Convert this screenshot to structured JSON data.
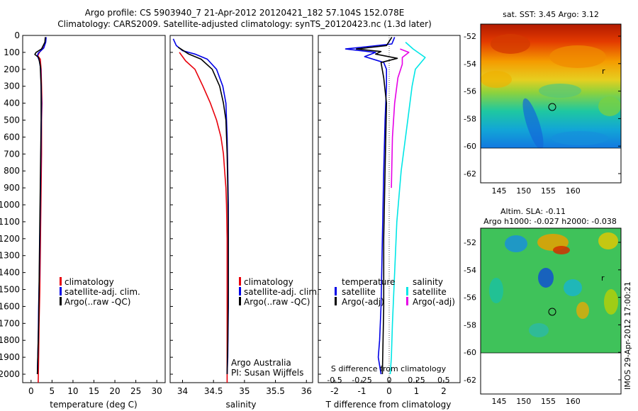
{
  "header": {
    "line1": "Argo profile: CS 5903940_7 21-Apr-2012 20120421_182 57.104S 152.078E",
    "line2": "Climatology: CARS2009. Satellite-adjusted climatology: synTS_20120423.nc (1.3d later)"
  },
  "watermark": "IMOS 29-Apr-2012 17:00:21",
  "colors": {
    "red": "#e8000b",
    "blue": "#0000e6",
    "black": "#000000",
    "cyan": "#00e6e6",
    "magenta": "#e600e6"
  },
  "chart_data": [
    {
      "type": "line",
      "xlabel": "temperature (deg C)",
      "x_ticks": [
        "0",
        "5",
        "10",
        "15",
        "20",
        "25",
        "30"
      ],
      "xlim": [
        -2,
        32
      ],
      "y_ticks": [
        "0",
        "100",
        "200",
        "300",
        "400",
        "500",
        "600",
        "700",
        "800",
        "900",
        "1000",
        "1100",
        "1200",
        "1300",
        "1400",
        "1500",
        "1600",
        "1700",
        "1800",
        "1900",
        "2000"
      ],
      "ylim": [
        2050,
        0
      ],
      "legend": [
        "climatology",
        "satellite-adj. clim.",
        "Argo(..raw -QC)"
      ],
      "series": [
        {
          "name": "climatology",
          "color": "red",
          "points": [
            [
              3.5,
              10
            ],
            [
              3.4,
              40
            ],
            [
              3.1,
              70
            ],
            [
              2.0,
              100
            ],
            [
              1.6,
              120
            ],
            [
              2.2,
              140
            ],
            [
              2.4,
              200
            ],
            [
              2.5,
              300
            ],
            [
              2.6,
              400
            ],
            [
              2.5,
              500
            ],
            [
              2.5,
              700
            ],
            [
              2.4,
              900
            ],
            [
              2.3,
              1100
            ],
            [
              2.2,
              1300
            ],
            [
              2.1,
              1500
            ],
            [
              1.9,
              1700
            ],
            [
              1.8,
              1900
            ],
            [
              1.7,
              2050
            ]
          ]
        },
        {
          "name": "satellite-adj. clim.",
          "color": "blue",
          "points": [
            [
              3.6,
              10
            ],
            [
              3.5,
              40
            ],
            [
              3.0,
              75
            ],
            [
              1.7,
              105
            ],
            [
              1.5,
              120
            ],
            [
              2.0,
              150
            ],
            [
              2.3,
              200
            ],
            [
              2.4,
              300
            ],
            [
              2.5,
              400
            ],
            [
              2.4,
              600
            ],
            [
              2.3,
              800
            ],
            [
              2.2,
              1000
            ],
            [
              2.1,
              1200
            ],
            [
              2.0,
              1400
            ],
            [
              1.8,
              1600
            ],
            [
              1.7,
              1800
            ],
            [
              1.5,
              2000
            ]
          ]
        },
        {
          "name": "Argo(..raw -QC)",
          "color": "black",
          "points": [
            [
              3.4,
              10
            ],
            [
              3.3,
              40
            ],
            [
              2.5,
              80
            ],
            [
              1.2,
              100
            ],
            [
              0.9,
              112
            ],
            [
              1.8,
              130
            ],
            [
              2.2,
              180
            ],
            [
              2.4,
              300
            ],
            [
              2.4,
              500
            ],
            [
              2.3,
              700
            ],
            [
              2.2,
              900
            ],
            [
              2.1,
              1100
            ],
            [
              2.0,
              1300
            ],
            [
              1.9,
              1500
            ],
            [
              1.8,
              1700
            ],
            [
              1.6,
              1900
            ],
            [
              1.5,
              2000
            ]
          ]
        }
      ]
    },
    {
      "type": "line",
      "xlabel": "salinity",
      "x_ticks": [
        "34",
        "34.5",
        "35",
        "35.5",
        "36"
      ],
      "xlim": [
        33.8,
        36.1
      ],
      "ylim": [
        2050,
        0
      ],
      "legend": [
        "climatology",
        "satellite-adj. clim.",
        "Argo(..raw -QC)"
      ],
      "annotation": [
        "Argo Australia",
        "PI: Susan Wijffels"
      ],
      "series": [
        {
          "name": "climatology",
          "color": "red",
          "points": [
            [
              33.95,
              100
            ],
            [
              34.05,
              150
            ],
            [
              34.2,
              200
            ],
            [
              34.33,
              300
            ],
            [
              34.45,
              400
            ],
            [
              34.55,
              500
            ],
            [
              34.62,
              600
            ],
            [
              34.66,
              700
            ],
            [
              34.68,
              800
            ],
            [
              34.7,
              900
            ],
            [
              34.71,
              1000
            ],
            [
              34.72,
              1200
            ],
            [
              34.72,
              1500
            ],
            [
              34.72,
              1800
            ],
            [
              34.72,
              2050
            ]
          ]
        },
        {
          "name": "satellite-adj. clim.",
          "color": "blue",
          "points": [
            [
              33.85,
              20
            ],
            [
              33.9,
              60
            ],
            [
              34.0,
              90
            ],
            [
              34.2,
              110
            ],
            [
              34.4,
              140
            ],
            [
              34.55,
              200
            ],
            [
              34.65,
              300
            ],
            [
              34.7,
              400
            ],
            [
              34.72,
              600
            ],
            [
              34.73,
              800
            ],
            [
              34.74,
              1000
            ],
            [
              34.74,
              1300
            ],
            [
              34.74,
              1600
            ],
            [
              34.73,
              1900
            ],
            [
              34.72,
              2000
            ]
          ]
        },
        {
          "name": "Argo(..raw -QC)",
          "color": "black",
          "points": [
            [
              33.93,
              70
            ],
            [
              34.1,
              110
            ],
            [
              34.3,
              140
            ],
            [
              34.48,
              200
            ],
            [
              34.6,
              300
            ],
            [
              34.66,
              400
            ],
            [
              34.7,
              500
            ],
            [
              34.72,
              700
            ],
            [
              34.73,
              900
            ],
            [
              34.74,
              1200
            ],
            [
              34.74,
              1500
            ],
            [
              34.73,
              1800
            ],
            [
              34.72,
              2000
            ]
          ]
        }
      ]
    },
    {
      "type": "line",
      "xlabel": "T difference from climatology",
      "x_ticks": [
        "-2",
        "-1",
        "0",
        "1",
        "2"
      ],
      "xlim": [
        -2.6,
        2.6
      ],
      "top_label": "S difference from climatology",
      "s_ticks": [
        "-0.5",
        "-0.25",
        "0",
        "0.25",
        "0.5"
      ],
      "slim": [
        -0.65,
        0.65
      ],
      "ylim": [
        2050,
        0
      ],
      "legend_temperature": {
        "title": "temperature",
        "items": [
          "satellite",
          "Argo(-adj)"
        ]
      },
      "legend_salinity": {
        "title": "salinity",
        "items": [
          "satellite",
          "Argo(-adj)"
        ]
      },
      "series_t": [
        {
          "name": "satellite",
          "color": "blue",
          "points": [
            [
              0.2,
              10
            ],
            [
              0.1,
              50
            ],
            [
              -1.6,
              80
            ],
            [
              -0.5,
              100
            ],
            [
              -0.9,
              125
            ],
            [
              -0.2,
              160
            ],
            [
              -0.1,
              200
            ],
            [
              -0.1,
              300
            ],
            [
              -0.15,
              500
            ],
            [
              -0.2,
              800
            ],
            [
              -0.25,
              1200
            ],
            [
              -0.3,
              1600
            ],
            [
              -0.35,
              1800
            ],
            [
              -0.4,
              1900
            ],
            [
              -0.3,
              2000
            ]
          ]
        },
        {
          "name": "Argo(-adj)",
          "color": "black",
          "points": [
            [
              0.1,
              10
            ],
            [
              -0.1,
              60
            ],
            [
              -1.2,
              80
            ],
            [
              -0.3,
              95
            ],
            [
              -0.5,
              110
            ],
            [
              0.3,
              135
            ],
            [
              -0.3,
              160
            ],
            [
              -0.2,
              250
            ],
            [
              -0.1,
              400
            ],
            [
              -0.15,
              800
            ],
            [
              -0.2,
              1200
            ],
            [
              -0.2,
              1600
            ],
            [
              -0.25,
              2000
            ]
          ]
        }
      ],
      "series_s": [
        {
          "name": "satellite",
          "color": "cyan",
          "points": [
            [
              0.15,
              40
            ],
            [
              0.22,
              80
            ],
            [
              0.33,
              130
            ],
            [
              0.24,
              200
            ],
            [
              0.21,
              300
            ],
            [
              0.17,
              500
            ],
            [
              0.11,
              800
            ],
            [
              0.07,
              1100
            ],
            [
              0.05,
              1400
            ],
            [
              0.03,
              1700
            ],
            [
              0.02,
              1900
            ],
            [
              0.01,
              2000
            ]
          ]
        },
        {
          "name": "Argo(-adj)",
          "color": "magenta",
          "points": [
            [
              0.1,
              80
            ],
            [
              0.18,
              100
            ],
            [
              0.12,
              130
            ],
            [
              0.12,
              170
            ],
            [
              0.08,
              250
            ],
            [
              0.05,
              400
            ],
            [
              0.03,
              600
            ],
            [
              0.02,
              900
            ]
          ]
        }
      ]
    }
  ],
  "maps": [
    {
      "title": "sat. SST: 3.45 Argo: 3.12",
      "y_ticks": [
        "-52",
        "-54",
        "-56",
        "-58",
        "-60",
        "-62"
      ],
      "x_ticks": [
        "145",
        "150",
        "155",
        "160"
      ]
    },
    {
      "title_lines": [
        "Altim. SLA: -0.11",
        "Argo h1000: -0.027 h2000: -0.038"
      ],
      "y_ticks": [
        "-52",
        "-54",
        "-56",
        "-58",
        "-60",
        "-62"
      ],
      "x_ticks": [
        "145",
        "150",
        "155",
        "160"
      ]
    }
  ]
}
